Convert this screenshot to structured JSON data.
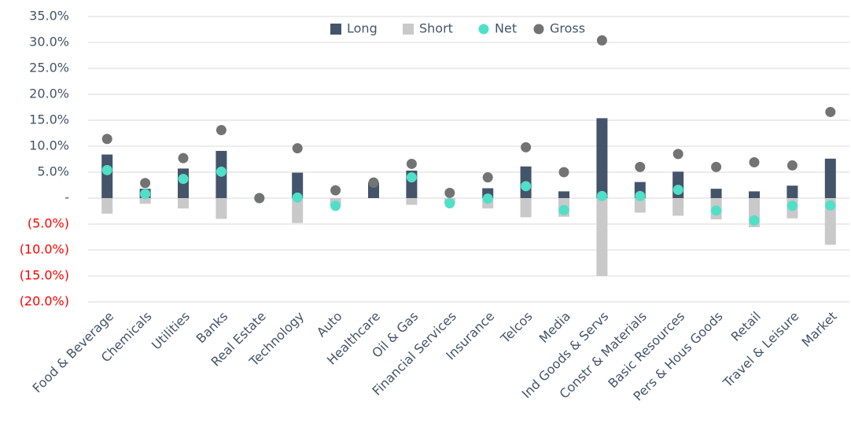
{
  "chart_data": {
    "type": "bar_dot",
    "categories": [
      "Food & Beverage",
      "Chemicals",
      "Utilities",
      "Banks",
      "Real Estate",
      "Technology",
      "Auto",
      "Healthcare",
      "Oil & Gas",
      "Financial Services",
      "Insurance",
      "Telcos",
      "Media",
      "Ind Goods & Servs",
      "Constr & Materials",
      "Basic Resources",
      "Pers & Hous Goods",
      "Retail",
      "Travel & Leisure",
      "Market"
    ],
    "series": [
      {
        "name": "Long",
        "color": "#44546a",
        "kind": "bar",
        "values": [
          8.4,
          1.8,
          5.7,
          9.1,
          0,
          4.9,
          0,
          3.0,
          5.3,
          0,
          1.9,
          6.1,
          1.3,
          15.4,
          3.1,
          5.1,
          1.8,
          1.3,
          2.4,
          7.6
        ]
      },
      {
        "name": "Short",
        "color": "#c9c9c9",
        "kind": "bar",
        "values": [
          -3.0,
          -1.1,
          -2.0,
          -4.0,
          0,
          -4.8,
          -1.5,
          0,
          -1.3,
          -1.0,
          -2.0,
          -3.7,
          -3.6,
          -15.0,
          -2.8,
          -3.4,
          -4.1,
          -5.6,
          -3.9,
          -9.0
        ]
      },
      {
        "name": "Net",
        "color": "#4fe0c8",
        "kind": "dot",
        "values": [
          5.4,
          0.8,
          3.7,
          5.1,
          0,
          0.1,
          -1.5,
          3.0,
          4.0,
          -1.0,
          -0.1,
          2.3,
          -2.3,
          0.4,
          0.4,
          1.6,
          -2.4,
          -4.3,
          -1.5,
          -1.4
        ]
      },
      {
        "name": "Gross",
        "color": "#737373",
        "kind": "dot",
        "values": [
          11.4,
          2.9,
          7.7,
          13.1,
          0,
          9.6,
          1.5,
          3.0,
          6.6,
          1.0,
          4.0,
          9.8,
          5.0,
          30.4,
          6.0,
          8.5,
          6.0,
          6.9,
          6.3,
          16.6
        ]
      }
    ],
    "ylim": [
      -20,
      35
    ],
    "yticks": [
      {
        "value": 35,
        "label": "35.0%"
      },
      {
        "value": 30,
        "label": "30.0%"
      },
      {
        "value": 25,
        "label": "25.0%"
      },
      {
        "value": 20,
        "label": "20.0%"
      },
      {
        "value": 15,
        "label": "15.0%"
      },
      {
        "value": 10,
        "label": "10.0%"
      },
      {
        "value": 5,
        "label": "5.0%"
      },
      {
        "value": 0,
        "label": "-"
      },
      {
        "value": -5,
        "label": "(5.0%)"
      },
      {
        "value": -10,
        "label": "(10.0%)"
      },
      {
        "value": -15,
        "label": "(15.0%)"
      },
      {
        "value": -20,
        "label": "(20.0%)"
      }
    ],
    "grid": true,
    "legend": "top",
    "negative_tick_color": "#ff0000",
    "tick_color": "#44546a"
  }
}
